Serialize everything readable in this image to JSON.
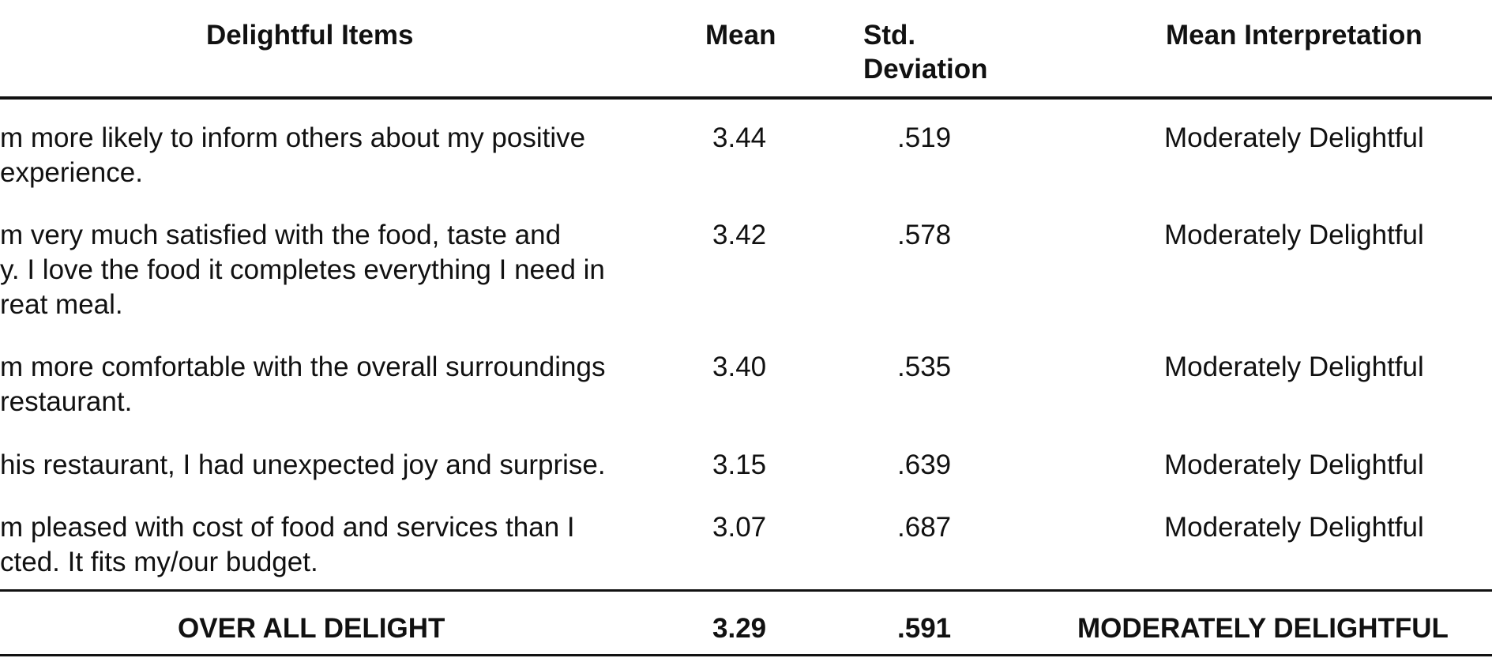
{
  "table": {
    "headers": {
      "items": "Delightful  Items",
      "mean": "Mean",
      "std_line1": "Std.",
      "std_line2": "Deviation",
      "interpretation": "Mean Interpretation"
    },
    "rows": [
      {
        "item": "m more likely to inform others about my positive\n experience.",
        "mean": "3.44",
        "std": ".519",
        "interpretation": "Moderately Delightful"
      },
      {
        "item": "m very much satisfied with the food, taste and\ny. I love the food it completes everything I need in\nreat meal.",
        "mean": "3.42",
        "std": ".578",
        "interpretation": "Moderately Delightful"
      },
      {
        "item": "m more comfortable with the overall surroundings\n restaurant.",
        "mean": "3.40",
        "std": ".535",
        "interpretation": "Moderately Delightful"
      },
      {
        "item": "his restaurant, I had unexpected joy and surprise.",
        "mean": "3.15",
        "std": ".639",
        "interpretation": "Moderately Delightful"
      },
      {
        "item": "m pleased with cost of food and services than I\ncted. It fits my/our budget.",
        "mean": "3.07",
        "std": ".687",
        "interpretation": "Moderately Delightful"
      }
    ],
    "overall": {
      "label": "OVER ALL DELIGHT",
      "mean": "3.29",
      "std": ".591",
      "interpretation": "MODERATELY DELIGHTFUL"
    }
  }
}
